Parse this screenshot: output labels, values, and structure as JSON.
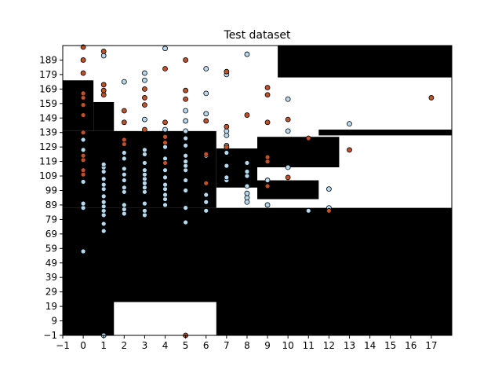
{
  "chart_data": {
    "type": "scatter",
    "title": "Test dataset",
    "xlabel": "",
    "ylabel": "",
    "xlim": [
      -1,
      18
    ],
    "ylim": [
      -1,
      199
    ],
    "x_ticks": [
      -1,
      0,
      1,
      2,
      3,
      4,
      5,
      6,
      7,
      8,
      9,
      10,
      11,
      12,
      13,
      14,
      15,
      16,
      17
    ],
    "y_ticks": [
      -1,
      9,
      19,
      29,
      39,
      49,
      59,
      69,
      79,
      89,
      99,
      109,
      119,
      129,
      139,
      149,
      159,
      169,
      179,
      189
    ],
    "grid": false,
    "colors": {
      "class_a": "#b5d9ef",
      "class_b": "#c0522a",
      "region_dark": "#000000",
      "region_light": "#ffffff",
      "edge": "#000000"
    },
    "decision_regions_dark": [
      [
        -1,
        18,
        -1,
        87
      ],
      [
        -1,
        6.5,
        87,
        140
      ],
      [
        -1,
        0.5,
        140,
        175
      ],
      [
        0.5,
        1.5,
        140,
        160
      ],
      [
        6.5,
        8.5,
        101,
        128
      ],
      [
        8.5,
        12.5,
        115,
        136
      ],
      [
        8.5,
        11.5,
        93,
        106
      ],
      [
        9.5,
        18,
        177,
        199
      ],
      [
        11.5,
        18,
        137,
        141
      ],
      [
        4.5,
        5.5,
        103,
        125
      ],
      [
        -1,
        4.5,
        93,
        96
      ]
    ],
    "decision_regions_light": [
      [
        1.5,
        6.5,
        -1,
        22
      ]
    ],
    "series": [
      {
        "class": "a",
        "points": [
          [
            0,
            57
          ],
          [
            0,
            87
          ],
          [
            0,
            90
          ],
          [
            0,
            105
          ],
          [
            0,
            110
          ],
          [
            0,
            127
          ],
          [
            0,
            134
          ],
          [
            1,
            -1
          ],
          [
            1,
            71
          ],
          [
            1,
            76
          ],
          [
            1,
            82
          ],
          [
            1,
            85
          ],
          [
            1,
            88
          ],
          [
            1,
            91
          ],
          [
            1,
            95
          ],
          [
            1,
            100
          ],
          [
            1,
            103
          ],
          [
            1,
            107
          ],
          [
            1,
            112
          ],
          [
            1,
            115
          ],
          [
            1,
            117
          ],
          [
            1,
            192
          ],
          [
            2,
            83
          ],
          [
            2,
            86
          ],
          [
            2,
            89
          ],
          [
            2,
            98
          ],
          [
            2,
            101
          ],
          [
            2,
            106
          ],
          [
            2,
            110
          ],
          [
            2,
            114
          ],
          [
            2,
            121
          ],
          [
            2,
            125
          ],
          [
            2,
            174
          ],
          [
            3,
            82
          ],
          [
            3,
            85
          ],
          [
            3,
            90
          ],
          [
            3,
            98
          ],
          [
            3,
            101
          ],
          [
            3,
            104
          ],
          [
            3,
            107
          ],
          [
            3,
            110
          ],
          [
            3,
            113
          ],
          [
            3,
            118
          ],
          [
            3,
            124
          ],
          [
            3,
            127
          ],
          [
            3,
            148
          ],
          [
            3,
            175
          ],
          [
            3,
            180
          ],
          [
            4,
            89
          ],
          [
            4,
            93
          ],
          [
            4,
            96
          ],
          [
            4,
            100
          ],
          [
            4,
            103
          ],
          [
            4,
            108
          ],
          [
            4,
            113
          ],
          [
            4,
            121
          ],
          [
            4,
            129
          ],
          [
            4,
            141
          ],
          [
            4,
            197
          ],
          [
            5,
            77
          ],
          [
            5,
            87
          ],
          [
            5,
            99
          ],
          [
            5,
            106
          ],
          [
            5,
            113
          ],
          [
            5,
            116
          ],
          [
            5,
            119
          ],
          [
            5,
            123
          ],
          [
            5,
            130
          ],
          [
            5,
            135
          ],
          [
            5,
            140
          ],
          [
            5,
            147
          ],
          [
            5,
            154
          ],
          [
            6,
            85
          ],
          [
            6,
            91
          ],
          [
            6,
            96
          ],
          [
            6,
            104
          ],
          [
            6,
            123
          ],
          [
            6,
            152
          ],
          [
            6,
            166
          ],
          [
            6,
            183
          ],
          [
            7,
            106
          ],
          [
            7,
            108
          ],
          [
            7,
            116
          ],
          [
            7,
            125
          ],
          [
            7,
            130
          ],
          [
            7,
            137
          ],
          [
            7,
            140
          ],
          [
            7,
            179
          ],
          [
            8,
            91
          ],
          [
            8,
            94
          ],
          [
            8,
            97
          ],
          [
            8,
            102
          ],
          [
            8,
            109
          ],
          [
            8,
            112
          ],
          [
            8,
            118
          ],
          [
            8,
            193
          ],
          [
            9,
            89
          ],
          [
            9,
            106
          ],
          [
            10,
            115
          ],
          [
            10,
            140
          ],
          [
            10,
            162
          ],
          [
            11,
            85
          ],
          [
            12,
            87
          ],
          [
            12,
            100
          ],
          [
            13,
            145
          ]
        ]
      },
      {
        "class": "b",
        "points": [
          [
            0,
            110
          ],
          [
            0,
            113
          ],
          [
            0,
            120
          ],
          [
            0,
            123
          ],
          [
            0,
            139
          ],
          [
            0,
            151
          ],
          [
            0,
            158
          ],
          [
            0,
            163
          ],
          [
            0,
            166
          ],
          [
            0,
            180
          ],
          [
            0,
            189
          ],
          [
            0,
            198
          ],
          [
            1,
            165
          ],
          [
            1,
            168
          ],
          [
            1,
            172
          ],
          [
            1,
            195
          ],
          [
            2,
            131
          ],
          [
            2,
            134
          ],
          [
            2,
            146
          ],
          [
            2,
            154
          ],
          [
            3,
            141
          ],
          [
            3,
            158
          ],
          [
            3,
            163
          ],
          [
            3,
            169
          ],
          [
            4,
            118
          ],
          [
            4,
            132
          ],
          [
            4,
            136
          ],
          [
            4,
            146
          ],
          [
            4,
            183
          ],
          [
            5,
            -1
          ],
          [
            5,
            162
          ],
          [
            5,
            168
          ],
          [
            5,
            189
          ],
          [
            6,
            104
          ],
          [
            6,
            124
          ],
          [
            6,
            147
          ],
          [
            7,
            129
          ],
          [
            7,
            143
          ],
          [
            7,
            181
          ],
          [
            8,
            151
          ],
          [
            9,
            102
          ],
          [
            9,
            119
          ],
          [
            9,
            122
          ],
          [
            9,
            146
          ],
          [
            9,
            165
          ],
          [
            9,
            170
          ],
          [
            10,
            108
          ],
          [
            10,
            148
          ],
          [
            11,
            135
          ],
          [
            12,
            85
          ],
          [
            13,
            127
          ],
          [
            17,
            163
          ]
        ]
      }
    ]
  }
}
